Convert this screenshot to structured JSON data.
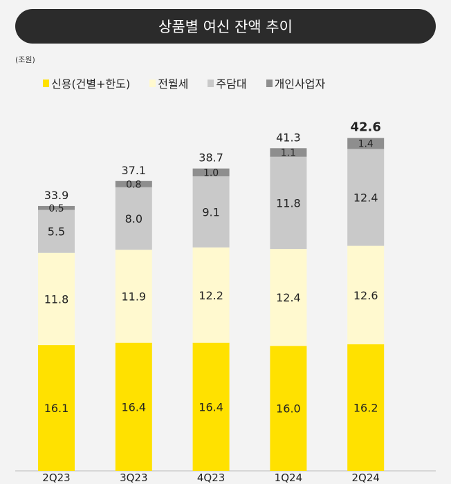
{
  "chart_data": {
    "type": "bar",
    "stacked": true,
    "title": "상품별 여신 잔액 추이",
    "unit": "(조원)",
    "categories": [
      "2Q23",
      "3Q23",
      "4Q23",
      "1Q24",
      "2Q24"
    ],
    "series": [
      {
        "name": "신용(건별+한도)",
        "color": "#FFE100",
        "values": [
          16.1,
          16.4,
          16.4,
          16.0,
          16.2
        ]
      },
      {
        "name": "전월세",
        "color": "#FFF9CF",
        "values": [
          11.8,
          11.9,
          12.2,
          12.4,
          12.6
        ]
      },
      {
        "name": "주담대",
        "color": "#C9C9C9",
        "values": [
          5.5,
          8.0,
          9.1,
          11.8,
          12.4
        ]
      },
      {
        "name": "개인사업자",
        "color": "#8E8E8E",
        "values": [
          0.5,
          0.8,
          1.0,
          1.1,
          1.4
        ]
      }
    ],
    "totals": [
      "33.9",
      "37.1",
      "38.7",
      "41.3",
      "42.6"
    ],
    "highlight_total_index": 4,
    "grid": false,
    "legend_position": "top-left"
  }
}
